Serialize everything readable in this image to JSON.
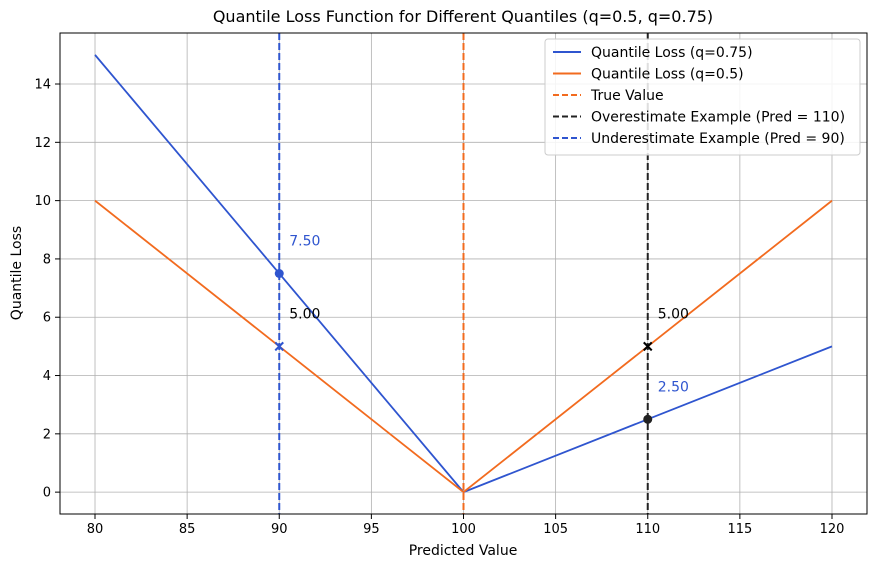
{
  "chart_data": {
    "type": "line",
    "title": "Quantile Loss Function for Different Quantiles (q=0.5, q=0.75)",
    "xlabel": "Predicted Value",
    "ylabel": "Quantile Loss",
    "xlim": [
      78.1,
      121.9
    ],
    "ylim": [
      -0.75,
      15.75
    ],
    "xticks": [
      80,
      85,
      90,
      95,
      100,
      105,
      110,
      115,
      120
    ],
    "yticks": [
      0,
      2,
      4,
      6,
      8,
      10,
      12,
      14
    ],
    "grid": true,
    "legend_position": "top-right",
    "series": [
      {
        "name": "Quantile Loss (q=0.75)",
        "color": "#2f55cf",
        "style": "solid",
        "x": [
          80,
          100,
          120
        ],
        "y": [
          15,
          0,
          5
        ]
      },
      {
        "name": "Quantile Loss (q=0.5)",
        "color": "#f26b1f",
        "style": "solid",
        "x": [
          80,
          100,
          120
        ],
        "y": [
          10,
          0,
          10
        ]
      }
    ],
    "vlines": [
      {
        "name": "True Value",
        "x": 100,
        "color": "#f26b1f",
        "style": "dashed"
      },
      {
        "name": "Overestimate Example (Pred = 110)",
        "x": 110,
        "color": "#222222",
        "style": "dashed"
      },
      {
        "name": "Underestimate Example (Pred = 90)",
        "x": 90,
        "color": "#2f55cf",
        "style": "dashed"
      }
    ],
    "points": [
      {
        "x": 90,
        "y": 7.5,
        "marker": "circle",
        "color": "#2f55cf"
      },
      {
        "x": 90,
        "y": 5.0,
        "marker": "x",
        "color": "#2f55cf"
      },
      {
        "x": 110,
        "y": 5.0,
        "marker": "x",
        "color": "#000000"
      },
      {
        "x": 110,
        "y": 2.5,
        "marker": "circle",
        "color": "#222222"
      }
    ],
    "annotations": [
      {
        "text": "7.50",
        "x": 90,
        "y": 7.5,
        "color": "#2f55cf"
      },
      {
        "text": "5.00",
        "x": 90,
        "y": 5.0,
        "color": "#000000"
      },
      {
        "text": "5.00",
        "x": 110,
        "y": 5.0,
        "color": "#000000"
      },
      {
        "text": "2.50",
        "x": 110,
        "y": 2.5,
        "color": "#2f55cf"
      }
    ]
  }
}
